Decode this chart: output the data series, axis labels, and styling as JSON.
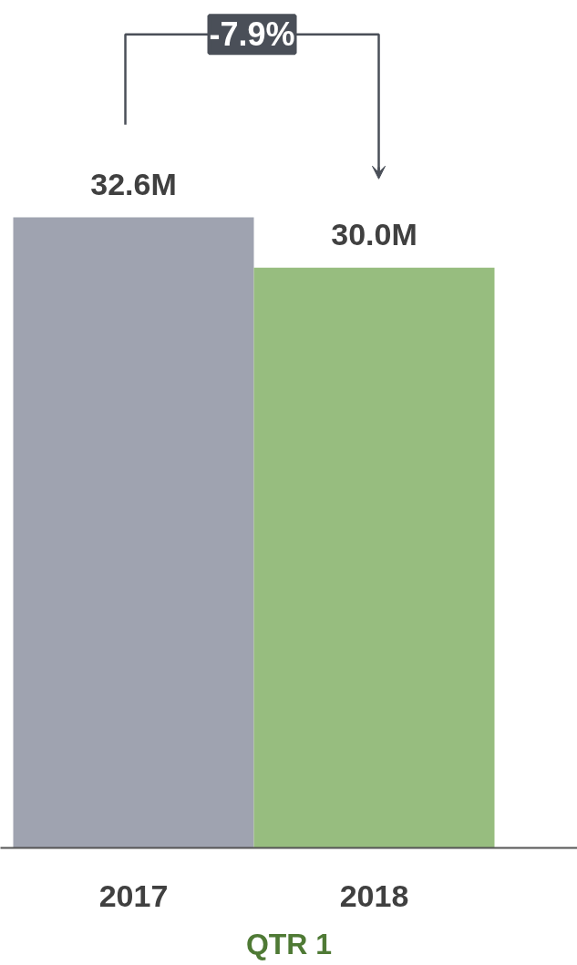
{
  "chart_data": {
    "type": "bar",
    "categories": [
      "2017",
      "2018"
    ],
    "values": [
      32.6,
      30.0
    ],
    "colors": [
      "#9fa3b0",
      "#97bd7f"
    ],
    "value_labels": [
      "32.6M",
      "30.0M"
    ],
    "xlabel": "QTR 1",
    "annotations": [
      "-7.9%"
    ],
    "grid": false
  }
}
